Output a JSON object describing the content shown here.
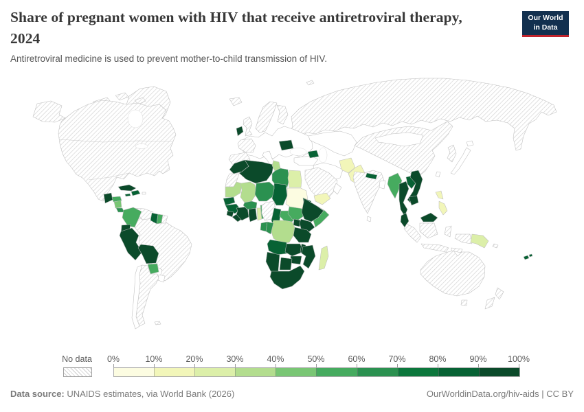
{
  "header": {
    "title_line1": "Share of pregnant women with HIV that receive antiretroviral therapy,",
    "title_line2": "2024",
    "subtitle": "Antiretroviral medicine is used to prevent mother-to-child transmission of HIV.",
    "logo": {
      "line1": "Our World",
      "line2": "in Data",
      "bg": "#12304f",
      "accent": "#c0232c"
    }
  },
  "legend": {
    "no_data_label": "No data",
    "tick_labels": [
      "0%",
      "10%",
      "20%",
      "30%",
      "40%",
      "50%",
      "60%",
      "70%",
      "80%",
      "90%",
      "100%"
    ],
    "colors": [
      "#fcfce1",
      "#f2f6b9",
      "#dcefa9",
      "#b3dd8e",
      "#79c674",
      "#46ab5f",
      "#2b9150",
      "#0c773c",
      "#076234",
      "#0b4a2a"
    ]
  },
  "footer": {
    "source_label": "Data source:",
    "source_text": " UNAIDS estimates, via World Bank (2026)",
    "credit": "OurWorldinData.org/hiv-aids | CC BY"
  },
  "chart_data": {
    "type": "choropleth",
    "title": "Share of pregnant women with HIV that receive antiretroviral therapy, 2024",
    "unit": "%",
    "color_scale": {
      "breaks_percent": [
        0,
        10,
        20,
        30,
        40,
        50,
        60,
        70,
        80,
        90,
        100
      ],
      "no_data_style": "hatched"
    },
    "regions": {
      "russia": "no_data",
      "svalbard": "no_data",
      "greenland": "no_data",
      "alaska": "no_data",
      "arctic-islands": "no_data",
      "north-america": "no_data",
      "cuba": 9,
      "jamaica": 8,
      "hispaniola": 8,
      "puerto-rico": "none",
      "guatemala": 9,
      "honduras": 5,
      "nicaragua": 4,
      "costa-rica": 6,
      "panama": 5,
      "venezuela": "no_data",
      "brazil": "no_data",
      "colombia": 5,
      "guyana": 8,
      "suriname": 5,
      "french-guiana": "no_data",
      "ecuador": 9,
      "peru": 9,
      "bolivia": 9,
      "paraguay": 5,
      "uruguay": "none",
      "argentina": "no_data",
      "chile": "none",
      "falklands": "no_data",
      "iceland": "no_data",
      "ireland": 9,
      "uk": "no_data",
      "scandinavia": "no_data",
      "finland": "no_data",
      "europe-mainland": "none",
      "france": "no_data",
      "iberia": "no_data",
      "italy": "none",
      "romania": 9,
      "turkey": "none",
      "caucasus": 8,
      "central-asia": "none",
      "iran": "none",
      "arabia": "no_data",
      "yemen": 1,
      "oman": "none",
      "afghanistan": 1,
      "pakistan": 1,
      "india": "no_data",
      "nepal": 8,
      "bangladesh": "none",
      "sri-lanka": "none",
      "china": "no_data",
      "mongolia": "none",
      "korea": "no_data",
      "japan": "none",
      "taiwan": "none",
      "myanmar": 5,
      "thailand": 9,
      "laos": 8,
      "vietnam": 9,
      "cambodia": 9,
      "malaysia-peninsula": 9,
      "malaysia-borneo": 9,
      "philippines": 1,
      "indonesia": "no_data",
      "west-papua": "no_data",
      "papua-new-guinea": 2,
      "solomon": "no_data",
      "fiji": 8,
      "australia": "no_data",
      "new-zealand": "no_data",
      "algeria": 9,
      "morocco": 9,
      "western-sahara": "no_data",
      "tunisia": 3,
      "libya": 6,
      "egypt": 2,
      "mauritania": 3,
      "mali": 3,
      "niger": 6,
      "chad": 8,
      "sudan": 0,
      "eritrea": 8,
      "senegal": 8,
      "guinea": 8,
      "sierra-leone": 9,
      "liberia": 9,
      "cote-divoire": 9,
      "ghana": 9,
      "togo": 2,
      "benin": 5,
      "burkina-faso": 6,
      "nigeria": "no_data",
      "cameroon": 8,
      "central-african-republic": 5,
      "south-sudan": 5,
      "ethiopia": 9,
      "somalia": 5,
      "uganda": 9,
      "kenya": 9,
      "drc": 3,
      "congo": 6,
      "gabon": 6,
      "tanzania": 9,
      "angola": 8,
      "zambia": 9,
      "malawi": 9,
      "mozambique": 9,
      "zimbabwe": 9,
      "botswana": 9,
      "namibia": 9,
      "south-africa": 9,
      "madagascar": 2
    }
  }
}
